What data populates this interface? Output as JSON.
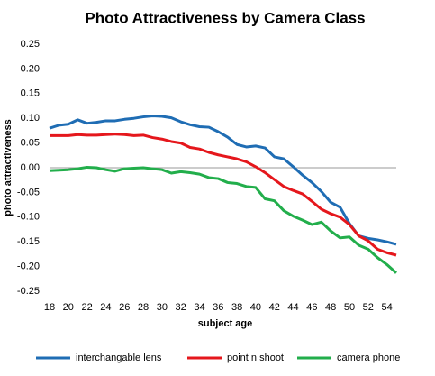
{
  "chart_data": {
    "type": "line",
    "title": "Photo Attractiveness by Camera Class",
    "xlabel": "subject age",
    "ylabel": "photo attractiveness",
    "x": [
      18,
      19,
      20,
      21,
      22,
      23,
      24,
      25,
      26,
      27,
      28,
      29,
      30,
      31,
      32,
      33,
      34,
      35,
      36,
      37,
      38,
      39,
      40,
      41,
      42,
      43,
      44,
      45,
      46,
      47,
      48,
      49,
      50,
      51,
      52,
      53,
      54,
      55
    ],
    "series": [
      {
        "name": "interchangable lens",
        "color": "#1f6db4",
        "values": [
          0.08,
          0.086,
          0.088,
          0.097,
          0.09,
          0.092,
          0.095,
          0.095,
          0.098,
          0.1,
          0.103,
          0.105,
          0.104,
          0.101,
          0.093,
          0.087,
          0.083,
          0.082,
          0.073,
          0.062,
          0.047,
          0.042,
          0.044,
          0.04,
          0.022,
          0.018,
          0.002,
          -0.015,
          -0.03,
          -0.048,
          -0.07,
          -0.08,
          -0.113,
          -0.138,
          -0.143,
          -0.146,
          -0.15,
          -0.155
        ]
      },
      {
        "name": "point n shoot",
        "color": "#e5171c",
        "values": [
          0.065,
          0.065,
          0.065,
          0.067,
          0.066,
          0.066,
          0.067,
          0.068,
          0.067,
          0.065,
          0.066,
          0.061,
          0.058,
          0.053,
          0.05,
          0.041,
          0.038,
          0.031,
          0.026,
          0.022,
          0.018,
          0.012,
          0.002,
          -0.01,
          -0.024,
          -0.038,
          -0.046,
          -0.053,
          -0.068,
          -0.084,
          -0.093,
          -0.1,
          -0.115,
          -0.138,
          -0.148,
          -0.165,
          -0.172,
          -0.177
        ]
      },
      {
        "name": "camera phone",
        "color": "#22ae4b",
        "values": [
          -0.006,
          -0.005,
          -0.004,
          -0.002,
          0.001,
          0.0,
          -0.004,
          -0.007,
          -0.002,
          -0.001,
          0.0,
          -0.002,
          -0.004,
          -0.011,
          -0.008,
          -0.01,
          -0.013,
          -0.02,
          -0.022,
          -0.03,
          -0.032,
          -0.038,
          -0.04,
          -0.063,
          -0.067,
          -0.087,
          -0.098,
          -0.106,
          -0.115,
          -0.11,
          -0.128,
          -0.142,
          -0.14,
          -0.157,
          -0.165,
          -0.182,
          -0.196,
          -0.213
        ]
      }
    ],
    "xlim": [
      18,
      55
    ],
    "xticks": [
      18,
      20,
      22,
      24,
      26,
      28,
      30,
      32,
      34,
      36,
      38,
      40,
      42,
      44,
      46,
      48,
      50,
      52,
      54
    ],
    "ylim": [
      -0.25,
      0.25
    ],
    "yticks": [
      0.25,
      {
        "value": 0.2,
        "label": "0.20"
      },
      0.15,
      {
        "value": 0.1,
        "label": "0.10"
      },
      0.05,
      {
        "value": 0,
        "label": "0.00"
      },
      -0.05,
      {
        "value": -0.1,
        "label": "-0.10"
      },
      -0.15,
      {
        "value": -0.2,
        "label": "-0.20"
      },
      -0.25
    ],
    "grid": false,
    "legend": "bottom"
  }
}
